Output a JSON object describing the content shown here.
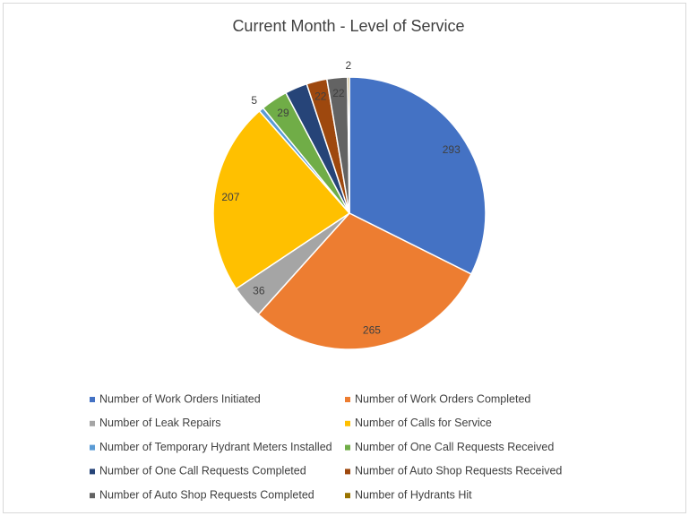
{
  "chart_data": {
    "type": "pie",
    "title": "Current Month - Level of Service",
    "categories": [
      "Number of Work Orders Initiated",
      "Number of Work Orders Completed",
      "Number of Leak Repairs",
      "Number of Calls for Service",
      "Number of Temporary Hydrant Meters Installed",
      "Number of One Call Requests Received",
      "Number of One Call Requests Completed",
      "Number of Auto Shop Requests Received",
      "Number of Auto Shop Requests Completed",
      "Number of Hydrants Hit"
    ],
    "values": [
      293,
      265,
      36,
      207,
      5,
      29,
      24,
      22,
      22,
      2
    ],
    "value_labels": [
      "293",
      "265",
      "36",
      "207",
      "5",
      "29",
      null,
      "22",
      "22",
      "2"
    ],
    "colors": [
      "#4472c4",
      "#ed7d31",
      "#a5a5a5",
      "#ffc000",
      "#5b9bd5",
      "#70ad47",
      "#264478",
      "#9e480e",
      "#636363",
      "#997300"
    ],
    "legend": "bottom"
  }
}
